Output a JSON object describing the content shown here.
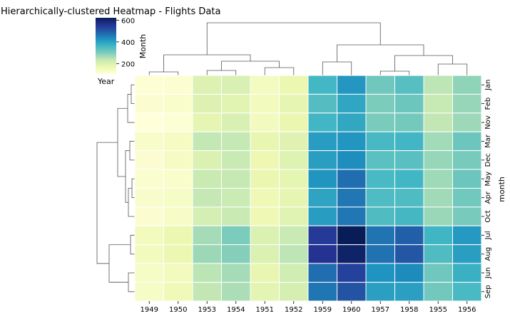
{
  "chart_data": {
    "type": "heatmap",
    "title": "Hierarchically-clustered Heatmap - Flights Data",
    "xlabel": "",
    "ylabel": "month",
    "columns": [
      "1949",
      "1950",
      "1953",
      "1954",
      "1951",
      "1952",
      "1959",
      "1960",
      "1957",
      "1958",
      "1955",
      "1956"
    ],
    "rows": [
      "Jan",
      "Feb",
      "Nov",
      "Mar",
      "Dec",
      "May",
      "Apr",
      "Oct",
      "Jul",
      "Aug",
      "Jun",
      "Sep"
    ],
    "values": [
      [
        112,
        115,
        196,
        204,
        145,
        171,
        360,
        417,
        315,
        340,
        242,
        284
      ],
      [
        118,
        126,
        196,
        188,
        150,
        180,
        342,
        391,
        301,
        318,
        233,
        277
      ],
      [
        104,
        114,
        180,
        203,
        146,
        172,
        362,
        390,
        305,
        310,
        237,
        271
      ],
      [
        132,
        141,
        236,
        235,
        178,
        193,
        406,
        419,
        356,
        362,
        267,
        317
      ],
      [
        118,
        140,
        201,
        229,
        166,
        194,
        405,
        432,
        336,
        337,
        278,
        306
      ],
      [
        121,
        125,
        229,
        234,
        172,
        183,
        420,
        472,
        355,
        363,
        270,
        318
      ],
      [
        129,
        135,
        235,
        227,
        163,
        181,
        396,
        461,
        348,
        348,
        269,
        313
      ],
      [
        119,
        133,
        211,
        229,
        162,
        191,
        407,
        461,
        347,
        359,
        274,
        306
      ],
      [
        148,
        170,
        264,
        302,
        199,
        230,
        548,
        622,
        465,
        491,
        364,
        413
      ],
      [
        148,
        170,
        272,
        293,
        199,
        242,
        559,
        606,
        467,
        505,
        347,
        405
      ],
      [
        135,
        149,
        243,
        264,
        178,
        218,
        472,
        535,
        422,
        435,
        315,
        374
      ],
      [
        136,
        158,
        237,
        259,
        184,
        209,
        463,
        508,
        404,
        404,
        312,
        355
      ]
    ],
    "colorbar": {
      "label": "Month",
      "ticks": [
        200,
        400,
        600
      ],
      "range": [
        104,
        622
      ]
    },
    "corner_label": "Year",
    "colormap": [
      "#ffffd9",
      "#edf8b1",
      "#c7e9b4",
      "#7fcdbb",
      "#41b6c4",
      "#1d91c0",
      "#225ea8",
      "#253494",
      "#081d58"
    ]
  }
}
